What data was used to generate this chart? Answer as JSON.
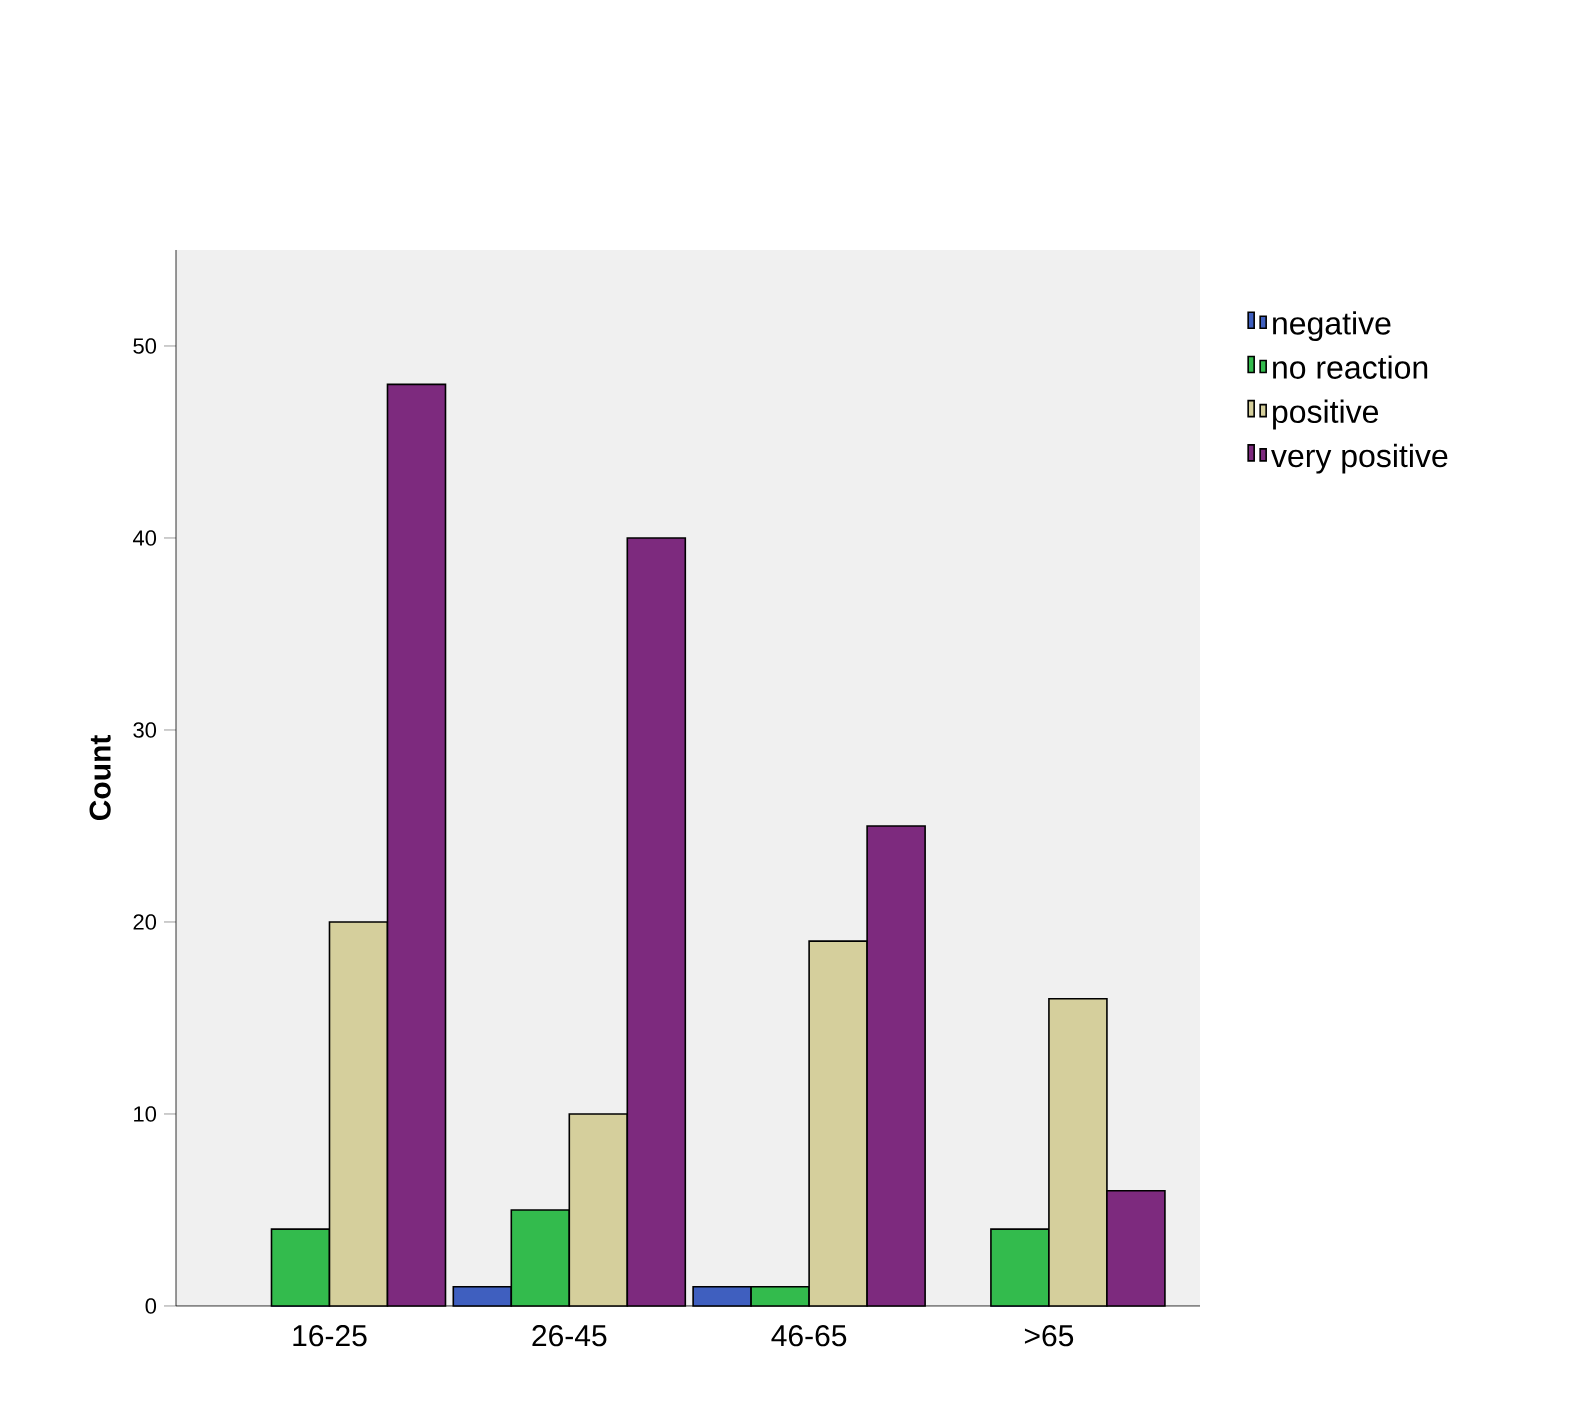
{
  "chart_data": {
    "type": "bar",
    "ylabel": "Count",
    "categories": [
      "16-25",
      "26-45",
      "46-65",
      ">65"
    ],
    "series": [
      {
        "name": "negative",
        "color": "#3f5fbf",
        "values": [
          0,
          1,
          1,
          0
        ]
      },
      {
        "name": "no reaction",
        "color": "#33bb4d",
        "values": [
          4,
          5,
          1,
          4
        ]
      },
      {
        "name": "positive",
        "color": "#d5cf9c",
        "values": [
          20,
          10,
          19,
          16
        ]
      },
      {
        "name": "very positive",
        "color": "#7d2a7e",
        "values": [
          48,
          40,
          25,
          6
        ]
      }
    ],
    "ylim": [
      0,
      55
    ],
    "yticks": [
      0,
      10,
      20,
      30,
      40,
      50
    ],
    "grid": false,
    "legend": "right"
  }
}
